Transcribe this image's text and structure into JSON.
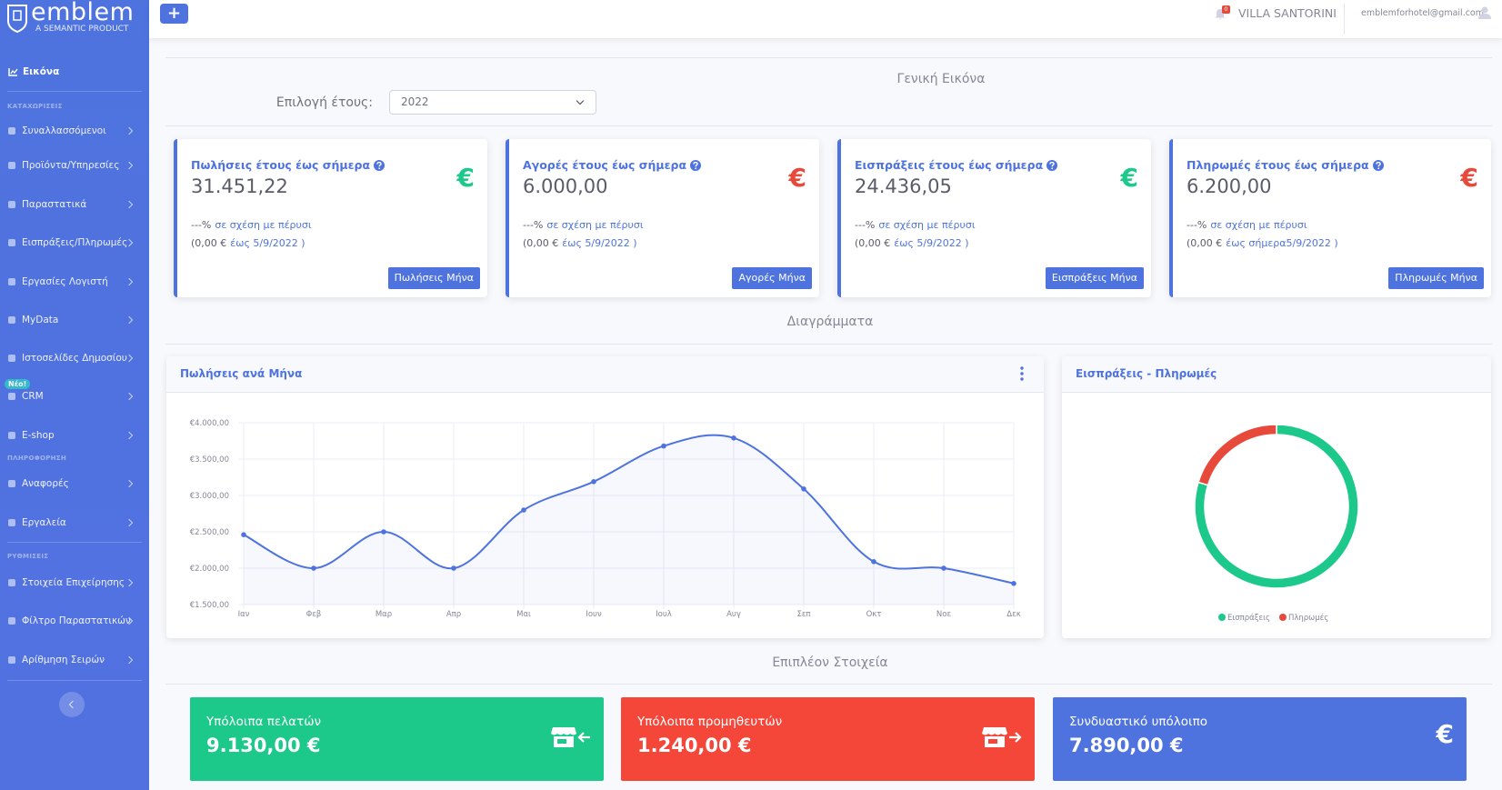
{
  "header": {
    "logo": "emblem",
    "tagline": "A SEMANTIC PRODUCT",
    "add": "+",
    "notifications": "0",
    "company": "VILLA SANTORINI",
    "user": "emblemforhotel@gmail.com"
  },
  "sidebar": {
    "dashboard": "Εικόνα",
    "groups": [
      {
        "heading": "ΚΑΤΑΧΩΡΙΣΕΙΣ",
        "items": [
          {
            "label": "Συναλλασσόμενοι"
          },
          {
            "label": "Προϊόντα/Υπηρεσίες"
          },
          {
            "label": "Παραστατικά"
          },
          {
            "label": "Εισπράξεις/Πληρωμές"
          },
          {
            "label": "Εργασίες Λογιστή"
          },
          {
            "label": "MyData"
          },
          {
            "label": "Ιστοσελίδες Δημοσίου"
          },
          {
            "label": "CRM",
            "badge": "Νέο!"
          },
          {
            "label": "E-shop"
          }
        ]
      },
      {
        "heading": "ΠΛΗΡΟΦΟΡΗΣΗ",
        "items": [
          {
            "label": "Αναφορές"
          },
          {
            "label": "Εργαλεία"
          }
        ]
      },
      {
        "heading": "ΡΥΘΜΙΣΕΙΣ",
        "items": [
          {
            "label": "Στοιχεία Επιχείρησης"
          },
          {
            "label": "Φίλτρο Παραστατικών"
          },
          {
            "label": "Αρίθμηση Σειρών"
          }
        ]
      }
    ]
  },
  "overview": {
    "title": "Γενική Εικόνα",
    "year_label": "Επιλογή έτους:",
    "year": "2022",
    "cards": [
      {
        "title": "Πωλήσεις έτους έως σήμερα",
        "value": "31.451,22",
        "icon": "€",
        "color": "#1cc88a",
        "change": "---%",
        "change_text": "σε σχέση με πέρυσι",
        "prior": "(0,00 €",
        "until": "έως 5/9/2022 )",
        "button": "Πωλήσεις Μήνα"
      },
      {
        "title": "Αγορές έτους έως σήμερα",
        "value": "6.000,00",
        "icon": "€",
        "color": "#e74a3b",
        "change": "---%",
        "change_text": "σε σχέση με πέρυσι",
        "prior": "(0,00 €",
        "until": "έως 5/9/2022 )",
        "button": "Αγορές Μήνα"
      },
      {
        "title": "Εισπράξεις έτους έως σήμερα",
        "value": "24.436,05",
        "icon": "€",
        "color": "#1cc88a",
        "change": "---%",
        "change_text": "σε σχέση με πέρυσι",
        "prior": "(0,00 €",
        "until": "έως 5/9/2022 )",
        "button": "Εισπράξεις Μήνα"
      },
      {
        "title": "Πληρωμές έτους έως σήμερα",
        "value": "6.200,00",
        "icon": "€",
        "color": "#e74a3b",
        "change": "---%",
        "change_text": "σε σχέση με πέρυσι",
        "prior": "(0,00 €",
        "until": "έως σήμερα5/9/2022 )",
        "button": "Πληρωμές Μήνα"
      }
    ]
  },
  "sections": {
    "charts": "Διαγράμματα",
    "more": "Επιπλέον Στοιχεία"
  },
  "chart_data": [
    {
      "type": "line",
      "title": "Πωλήσεις ανά Μήνα",
      "categories": [
        "Ιαν",
        "Φεβ",
        "Μαρ",
        "Απρ",
        "Μαι",
        "Ιουν",
        "Ιουλ",
        "Αυγ",
        "Σεπ",
        "Οκτ",
        "Νοε",
        "Δεκ"
      ],
      "values": [
        2460,
        2000,
        2500,
        2000,
        2800,
        3190,
        3680,
        3790,
        3090,
        2090,
        2000,
        1790
      ],
      "color": "#4e73df",
      "ylim": [
        1500,
        4000
      ],
      "yticks": [
        {
          "value": 1500,
          "label": "€1.500,00"
        },
        {
          "value": 2000,
          "label": "€2.000,00"
        },
        {
          "value": 2500,
          "label": "€2.500,00"
        },
        {
          "value": 3000,
          "label": "€3.000,00"
        },
        {
          "value": 3500,
          "label": "€3.500,00"
        },
        {
          "value": 4000,
          "label": "€4.000,00"
        }
      ],
      "grid": true
    },
    {
      "type": "doughnut",
      "title": "Εισπράξεις - Πληρωμές",
      "categories": [
        "Εισπράξεις",
        "Πληρωμές"
      ],
      "values": [
        24436.05,
        6200
      ],
      "colors": [
        "#1cc88a",
        "#e74a3b"
      ],
      "legend": "bottom"
    }
  ],
  "balances": [
    {
      "title": "Υπόλοιπα πελατών",
      "value": "9.130,00 €",
      "color": "#1cc88a"
    },
    {
      "title": "Υπόλοιπα προμηθευτών",
      "value": "1.240,00 €",
      "color": "#f4473a"
    },
    {
      "title": "Συνδυαστικό υπόλοιπο",
      "value": "7.890,00 €",
      "color": "#4e73df",
      "icon": "€"
    }
  ]
}
